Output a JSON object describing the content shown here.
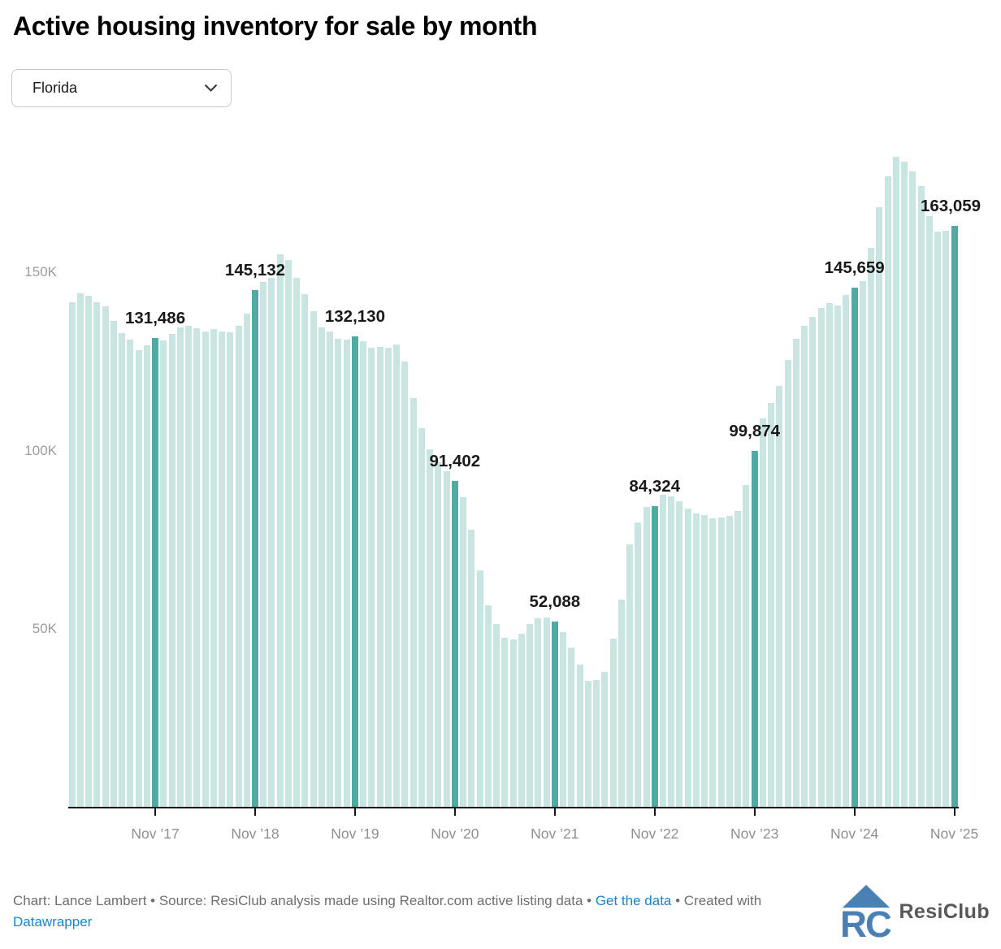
{
  "title": "Active housing inventory for sale by month",
  "dropdown": {
    "value": "Florida"
  },
  "chart_data": {
    "type": "bar",
    "title": "Active housing inventory for sale by month",
    "region_selected": "Florida",
    "x_start": "Jan 2017",
    "x_end": "Nov 2025",
    "x_interval": "1 month",
    "ylim": [
      0,
      185000
    ],
    "grid": "off",
    "values": [
      141600,
      144200,
      143400,
      141700,
      140400,
      136400,
      133000,
      131200,
      128200,
      129500,
      131486,
      131000,
      132800,
      134500,
      135000,
      134300,
      133400,
      134200,
      133400,
      133200,
      135100,
      138500,
      145132,
      147400,
      148500,
      155000,
      153500,
      148500,
      144000,
      139000,
      134500,
      133300,
      131400,
      131100,
      132130,
      130700,
      128800,
      129100,
      128800,
      129700,
      125000,
      114700,
      106300,
      100300,
      96700,
      94200,
      91402,
      87000,
      77800,
      66400,
      56600,
      51300,
      47400,
      47000,
      48500,
      51300,
      53000,
      53100,
      52088,
      49000,
      44800,
      39800,
      35400,
      35500,
      37900,
      47200,
      58100,
      73700,
      79900,
      84200,
      84324,
      87500,
      87200,
      85800,
      83700,
      82400,
      81900,
      80900,
      81100,
      81600,
      82900,
      90400,
      99874,
      109000,
      113400,
      118100,
      125500,
      131400,
      135100,
      137500,
      140000,
      141300,
      140700,
      143600,
      145659,
      147500,
      157000,
      168300,
      176900,
      182500,
      181100,
      178400,
      174200,
      165800,
      161500,
      161800,
      163059
    ],
    "highlights": [
      10,
      22,
      34,
      46,
      58,
      70,
      82,
      94,
      106
    ],
    "annotations": [
      {
        "index": 10,
        "text": "131,486"
      },
      {
        "index": 22,
        "text": "145,132"
      },
      {
        "index": 34,
        "text": "132,130"
      },
      {
        "index": 46,
        "text": "91,402"
      },
      {
        "index": 58,
        "text": "52,088"
      },
      {
        "index": 70,
        "text": "84,324"
      },
      {
        "index": 82,
        "text": "99,874"
      },
      {
        "index": 94,
        "text": "145,659"
      },
      {
        "index": 106,
        "text": "163,059"
      }
    ],
    "x_ticks": [
      {
        "index": 10,
        "label": "Nov ’17"
      },
      {
        "index": 22,
        "label": "Nov ’18"
      },
      {
        "index": 34,
        "label": "Nov ’19"
      },
      {
        "index": 46,
        "label": "Nov ’20"
      },
      {
        "index": 58,
        "label": "Nov ’21"
      },
      {
        "index": 70,
        "label": "Nov ’22"
      },
      {
        "index": 82,
        "label": "Nov ’23"
      },
      {
        "index": 94,
        "label": "Nov ’24"
      },
      {
        "index": 106,
        "label": "Nov ’25"
      }
    ],
    "y_ticks": [
      {
        "value": 50000,
        "label": "50K"
      },
      {
        "value": 100000,
        "label": "100K"
      },
      {
        "value": 150000,
        "label": "150K"
      }
    ],
    "colors": {
      "bar": "#c9e5e1",
      "highlight": "#4faaa4",
      "axis": "#161616",
      "accent_blue": "#1d83c9"
    }
  },
  "footer": {
    "parts": [
      {
        "text": "Chart: Lance Lambert • Source: ResiClub analysis made using Realtor.com active listing data • ",
        "link": false
      },
      {
        "text": "Get the data",
        "link": true
      },
      {
        "text": " • Created with ",
        "link": false
      },
      {
        "text": "Datawrapper",
        "link": true
      }
    ]
  },
  "logo": {
    "text": "ResiClub",
    "icon_color": "#4b80b5"
  }
}
